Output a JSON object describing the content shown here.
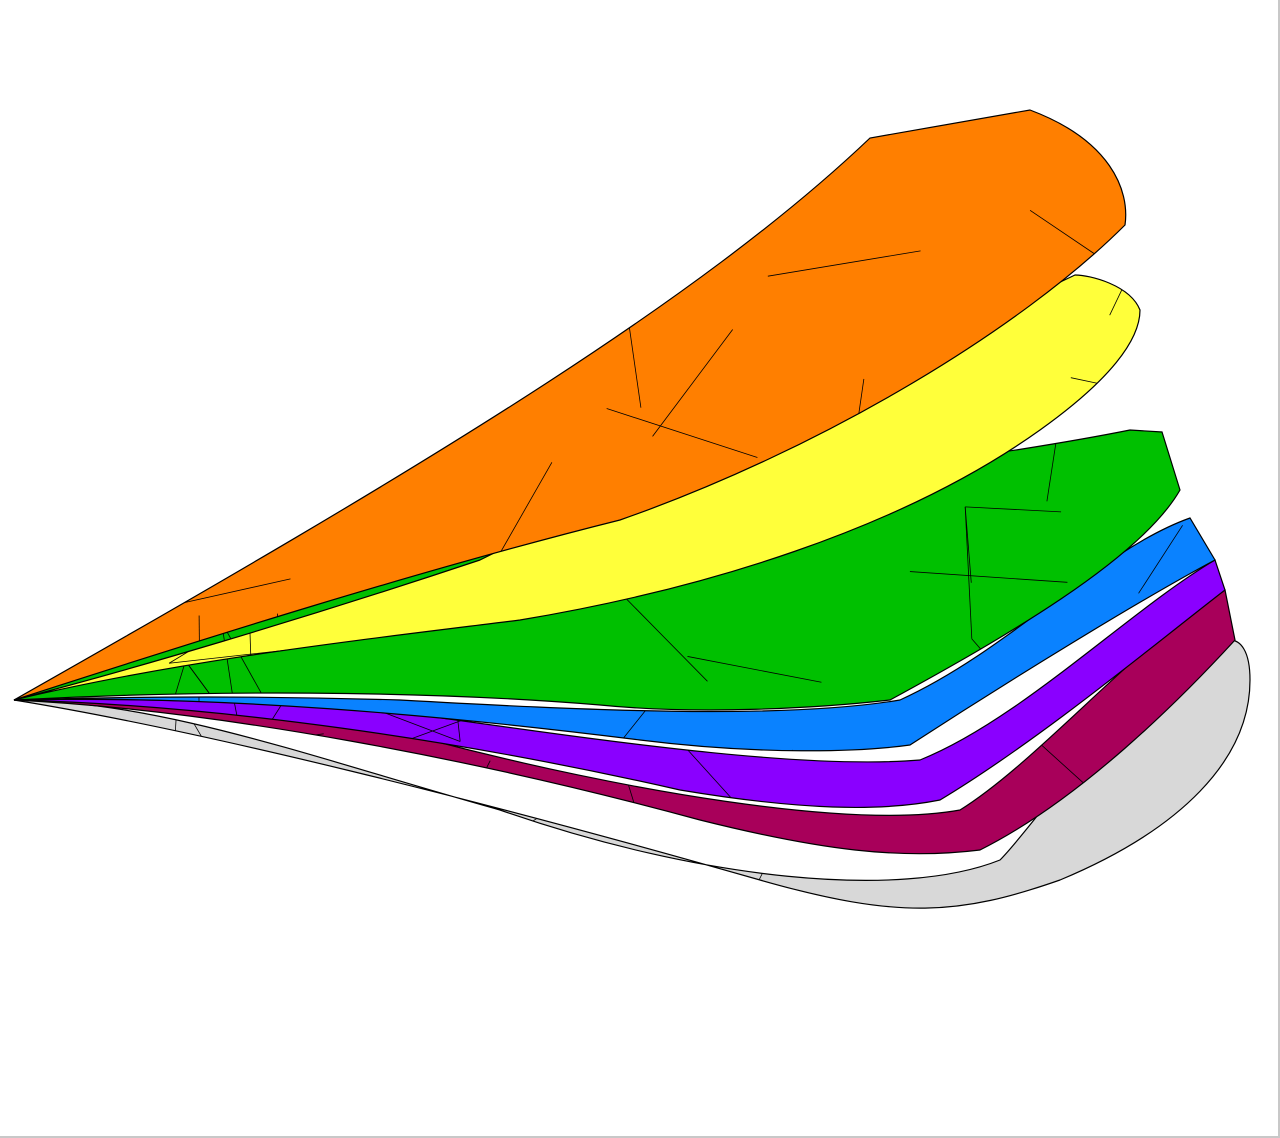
{
  "scene": {
    "background": "#ffffff",
    "frame_color": "#c8c8c8",
    "mesh_color": "#000000",
    "surfaces": [
      {
        "name": "orange-surface",
        "color": "#ff7f00"
      },
      {
        "name": "yellow-surface",
        "color": "#ffff3a"
      },
      {
        "name": "green-surface",
        "color": "#00c000"
      },
      {
        "name": "blue-surface",
        "color": "#0a82ff"
      },
      {
        "name": "violet-surface",
        "color": "#8a00ff"
      },
      {
        "name": "magenta-surface",
        "color": "#a8005a"
      },
      {
        "name": "gray-surface",
        "color": "#d8d8d8"
      }
    ]
  }
}
